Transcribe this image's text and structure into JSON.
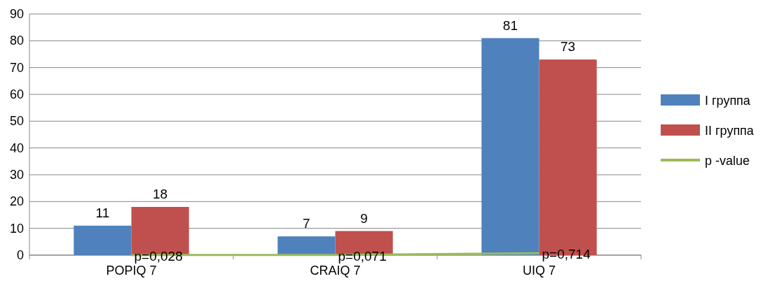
{
  "chart_data": {
    "type": "bar",
    "categories": [
      "POPIQ 7",
      "CRAIQ 7",
      "UIQ 7"
    ],
    "series": [
      {
        "name": "I группа",
        "color": "#4f81bd",
        "values": [
          11,
          7,
          81
        ],
        "value_labels": [
          "11",
          "7",
          "81"
        ]
      },
      {
        "name": "II группа",
        "color": "#c0504d",
        "values": [
          18,
          9,
          73
        ],
        "value_labels": [
          "18",
          "9",
          "73"
        ]
      },
      {
        "name": "p -value",
        "type": "line",
        "color": "#9bbb59",
        "values": [
          0.028,
          0.071,
          0.714
        ],
        "value_labels": [
          "p=0,028",
          "p=0,071",
          "p=0,714"
        ]
      }
    ],
    "ylim": [
      0,
      90
    ],
    "yticks": [
      0,
      10,
      20,
      30,
      40,
      50,
      60,
      70,
      80,
      90
    ],
    "grid": "y",
    "legend": "right",
    "marker": "none"
  }
}
